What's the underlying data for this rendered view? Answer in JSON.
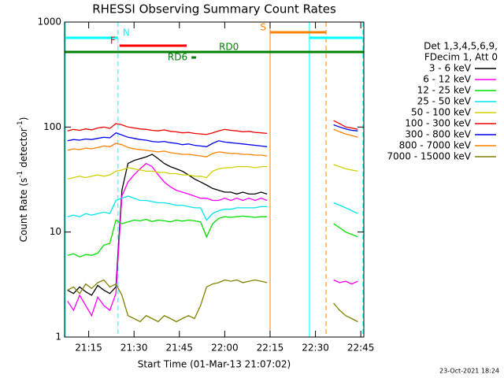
{
  "chart_data": {
    "type": "line",
    "title": "RHESSI Observing Summary Count Rates",
    "x_label": "Start Time (01-Mar-13 21:07:02)",
    "y_label_parts": [
      "Count Rate (s",
      "-1",
      " detector",
      "-1",
      ")"
    ],
    "legend_header": [
      "Det 1,3,4,5,6,9,",
      "FDecim 1, Att 0"
    ],
    "footer": "23-Oct-2021 18:24",
    "log_y": true,
    "xlim": [
      1267.03,
      1366
    ],
    "xticks": [
      {
        "value": 1275,
        "label": "21:15"
      },
      {
        "value": 1290,
        "label": "21:30"
      },
      {
        "value": 1305,
        "label": "21:45"
      },
      {
        "value": 1320,
        "label": "22:00"
      },
      {
        "value": 1335,
        "label": "22:15"
      },
      {
        "value": 1350,
        "label": "22:30"
      },
      {
        "value": 1365,
        "label": "22:45"
      }
    ],
    "ylim": [
      1,
      1000
    ],
    "yticks": [
      1,
      10,
      100,
      1000
    ],
    "x": [
      1268,
      1270,
      1272,
      1274,
      1276,
      1278,
      1280,
      1282,
      1284,
      1286,
      1288,
      1290,
      1292,
      1294,
      1296,
      1298,
      1300,
      1302,
      1304,
      1306,
      1308,
      1310,
      1312,
      1314,
      1316,
      1318,
      1320,
      1322,
      1324,
      1326,
      1328,
      1330,
      1332,
      1334,
      1345,
      1356,
      1358,
      1360,
      1362,
      1364
    ],
    "series": [
      {
        "name": "3 - 6 keV",
        "color": "#000000",
        "values": [
          2.8,
          2.6,
          3,
          2.7,
          2.5,
          3.1,
          2.8,
          2.6,
          3,
          25,
          45,
          48,
          50,
          52,
          55,
          50,
          45,
          42,
          40,
          38,
          35,
          32,
          30,
          28,
          26,
          25,
          24,
          24,
          23,
          24,
          23,
          23,
          24,
          23,
          null,
          null,
          null,
          null,
          null,
          null
        ]
      },
      {
        "name": "6 - 12 keV",
        "color": "#ff00ff",
        "values": [
          2.2,
          1.8,
          2.5,
          2,
          1.6,
          2.4,
          2,
          1.8,
          2.6,
          22,
          30,
          35,
          40,
          45,
          42,
          35,
          30,
          27,
          25,
          24,
          23,
          22,
          21,
          21,
          20,
          20,
          21,
          20,
          21,
          20,
          21,
          20,
          21,
          20,
          null,
          3.5,
          3.3,
          3.4,
          3.2,
          3.4
        ]
      },
      {
        "name": "12 - 25 keV",
        "color": "#00e000",
        "values": [
          6,
          6.2,
          5.8,
          6.1,
          6,
          6.3,
          7.5,
          7.8,
          13,
          12,
          12.5,
          13,
          12.8,
          13.2,
          12.6,
          13,
          12.8,
          12.5,
          13,
          12.7,
          13,
          12.8,
          12.5,
          9,
          12,
          13.5,
          14,
          13.8,
          14,
          14.2,
          14,
          13.8,
          14,
          14,
          null,
          12,
          11,
          10,
          9.5,
          9
        ]
      },
      {
        "name": "25 - 50 keV",
        "color": "#00e5ee",
        "values": [
          14,
          14.5,
          14,
          15,
          14.5,
          15,
          15.5,
          15,
          20,
          21,
          22,
          21,
          20,
          20,
          19.5,
          19,
          19,
          18.5,
          18,
          18,
          17.5,
          17,
          17,
          13,
          15,
          16,
          16.5,
          16.5,
          17,
          17,
          17,
          17,
          17.5,
          17.5,
          null,
          19,
          18,
          17,
          16,
          15
        ]
      },
      {
        "name": "50 - 100 keV",
        "color": "#d0d000",
        "values": [
          32,
          33,
          34,
          33,
          34,
          35,
          34,
          35,
          38,
          39,
          41,
          40,
          39,
          38,
          38,
          37,
          37,
          36,
          36,
          35,
          35,
          34,
          34,
          33,
          38,
          40,
          41,
          41,
          42,
          42,
          42,
          41,
          42,
          42,
          null,
          44,
          42,
          40,
          39,
          38
        ]
      },
      {
        "name": "100 - 300 keV",
        "color": "#ee0000",
        "values": [
          92,
          95,
          93,
          96,
          94,
          98,
          100,
          97,
          108,
          105,
          100,
          98,
          96,
          95,
          93,
          92,
          94,
          91,
          90,
          88,
          89,
          87,
          86,
          85,
          88,
          92,
          95,
          93,
          92,
          90,
          91,
          89,
          88,
          87,
          null,
          115,
          108,
          100,
          98,
          95
        ]
      },
      {
        "name": "300 - 800 keV",
        "color": "#0000ee",
        "values": [
          74,
          76,
          75,
          77,
          76,
          78,
          80,
          79,
          88,
          84,
          80,
          78,
          76,
          75,
          73,
          72,
          73,
          71,
          70,
          68,
          69,
          67,
          66,
          65,
          70,
          74,
          72,
          71,
          70,
          69,
          68,
          67,
          66,
          65,
          null,
          105,
          100,
          96,
          93,
          92
        ]
      },
      {
        "name": "800 - 7000 keV",
        "color": "#ff8000",
        "values": [
          60,
          62,
          61,
          63,
          62,
          64,
          66,
          65,
          70,
          68,
          64,
          62,
          61,
          60,
          59,
          58,
          59,
          57,
          56,
          55,
          55,
          54,
          53,
          52,
          56,
          58,
          57,
          56,
          56,
          55,
          55,
          54,
          54,
          53,
          null,
          95,
          90,
          86,
          83,
          80
        ]
      },
      {
        "name": "7000 - 15000 keV",
        "color": "#808000",
        "values": [
          2.8,
          3,
          2.6,
          3.2,
          2.9,
          3.3,
          3.5,
          3,
          3.2,
          2.5,
          1.6,
          1.5,
          1.4,
          1.6,
          1.5,
          1.4,
          1.6,
          1.5,
          1.4,
          1.5,
          1.6,
          1.5,
          2,
          3,
          3.2,
          3.3,
          3.5,
          3.4,
          3.5,
          3.3,
          3.4,
          3.5,
          3.4,
          3.3,
          null,
          2.1,
          1.8,
          1.6,
          1.5,
          1.4
        ]
      }
    ],
    "flags": [
      {
        "label": "N",
        "color": "#00ffff",
        "segments": [
          [
            1267.03,
            1284.7
          ],
          [
            1348,
            1365.7
          ]
        ]
      },
      {
        "label": "F",
        "color": "#ff0000",
        "segments": [
          [
            1285.2,
            1307.4
          ]
        ]
      },
      {
        "label": "S",
        "color": "#ff8000",
        "segments": [
          [
            1335,
            1353.5
          ]
        ]
      },
      {
        "label": "RD0",
        "color": "#008000",
        "segments": [
          [
            1267.03,
            1366
          ]
        ]
      },
      {
        "label": "RD6",
        "color": "#008000",
        "segments": [
          [
            1309,
            1310.5
          ]
        ]
      }
    ],
    "vlines": [
      {
        "x": 1284.7,
        "color": "#00ffff",
        "dashed": true
      },
      {
        "x": 1335,
        "color": "#ff8000",
        "dashed": false
      },
      {
        "x": 1348,
        "color": "#00ffff",
        "dashed": false
      },
      {
        "x": 1353.5,
        "color": "#ff8000",
        "dashed": true
      },
      {
        "x": 1365.7,
        "color": "#00ffff",
        "dashed": true
      }
    ]
  }
}
